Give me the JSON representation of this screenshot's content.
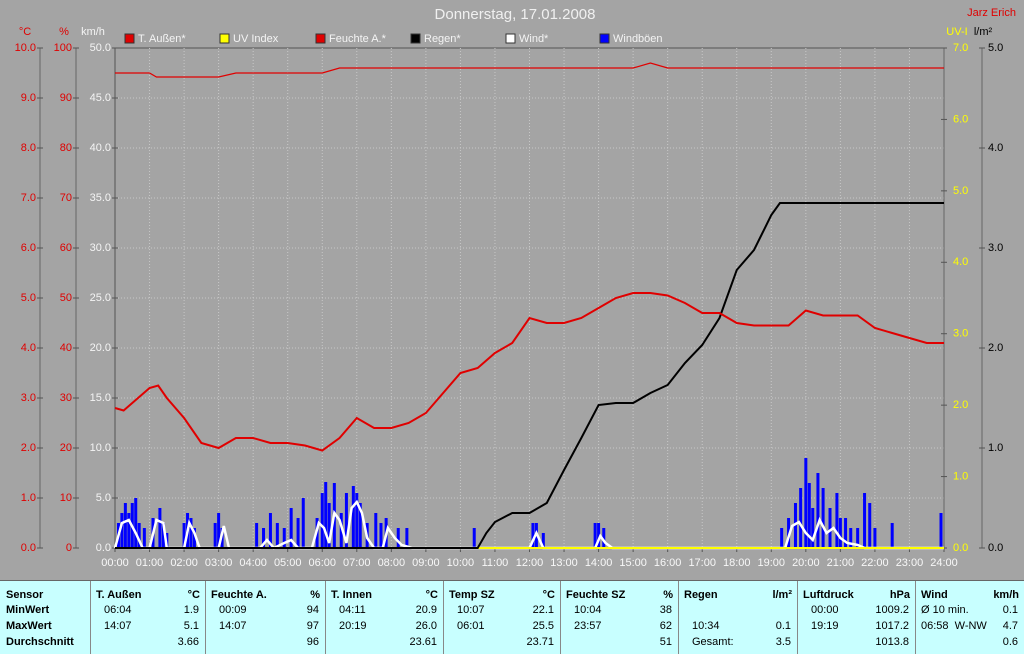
{
  "chart_data": {
    "type": "line",
    "title": "Donnerstag, 17.01.2008",
    "author": "Jarz Erich",
    "xlim": [
      0,
      24
    ],
    "xticks": [
      {
        "value": 0,
        "label": "00:00"
      },
      {
        "value": 1,
        "label": "01:00"
      },
      {
        "value": 2,
        "label": "02:00"
      },
      {
        "value": 3,
        "label": "03:00"
      },
      {
        "value": 4,
        "label": "04:00"
      },
      {
        "value": 5,
        "label": "05:00"
      },
      {
        "value": 6,
        "label": "06:00"
      },
      {
        "value": 7,
        "label": "07:00"
      },
      {
        "value": 8,
        "label": "08:00"
      },
      {
        "value": 9,
        "label": "09:00"
      },
      {
        "value": 10,
        "label": "10:00"
      },
      {
        "value": 11,
        "label": "11:00"
      },
      {
        "value": 12,
        "label": "12:00"
      },
      {
        "value": 13,
        "label": "13:00"
      },
      {
        "value": 14,
        "label": "14:00"
      },
      {
        "value": 15,
        "label": "15:00"
      },
      {
        "value": 16,
        "label": "16:00"
      },
      {
        "value": 17,
        "label": "17:00"
      },
      {
        "value": 18,
        "label": "18:00"
      },
      {
        "value": 19,
        "label": "19:00"
      },
      {
        "value": 20,
        "label": "20:00"
      },
      {
        "value": 21,
        "label": "21:00"
      },
      {
        "value": 22,
        "label": "22:00"
      },
      {
        "value": 23,
        "label": "23:00"
      },
      {
        "value": 24,
        "label": "24:00"
      }
    ],
    "grid": true,
    "y_axes": [
      {
        "label": "°C",
        "color": "#e00000",
        "ylim": [
          0,
          10
        ],
        "yticks": [
          {
            "value": 0,
            "label": "0.0"
          },
          {
            "value": 1,
            "label": "1.0"
          },
          {
            "value": 2,
            "label": "2.0"
          },
          {
            "value": 3,
            "label": "3.0"
          },
          {
            "value": 4,
            "label": "4.0"
          },
          {
            "value": 5,
            "label": "5.0"
          },
          {
            "value": 6,
            "label": "6.0"
          },
          {
            "value": 7,
            "label": "7.0"
          },
          {
            "value": 8,
            "label": "8.0"
          },
          {
            "value": 9,
            "label": "9.0"
          },
          {
            "value": 10,
            "label": "10.0"
          }
        ]
      },
      {
        "label": "%",
        "color": "#e00000",
        "ylim": [
          0,
          100
        ],
        "yticks": [
          0,
          10,
          20,
          30,
          40,
          50,
          60,
          70,
          80,
          90,
          100
        ]
      },
      {
        "label": "km/h",
        "color": "#f4f4f4",
        "ylim": [
          0,
          50
        ],
        "yticks": [
          {
            "value": 0,
            "label": "0.0"
          },
          {
            "value": 5,
            "label": "5.0"
          },
          {
            "value": 10,
            "label": "10.0"
          },
          {
            "value": 15,
            "label": "15.0"
          },
          {
            "value": 20,
            "label": "20.0"
          },
          {
            "value": 25,
            "label": "25.0"
          },
          {
            "value": 30,
            "label": "30.0"
          },
          {
            "value": 35,
            "label": "35.0"
          },
          {
            "value": 40,
            "label": "40.0"
          },
          {
            "value": 45,
            "label": "45.0"
          },
          {
            "value": 50,
            "label": "50.0"
          }
        ]
      },
      {
        "label": "UV-I",
        "color": "#ffff00",
        "ylim": [
          0,
          7
        ],
        "yticks": [
          {
            "value": 0,
            "label": "0.0"
          },
          {
            "value": 1,
            "label": "1.0"
          },
          {
            "value": 2,
            "label": "2.0"
          },
          {
            "value": 3,
            "label": "3.0"
          },
          {
            "value": 4,
            "label": "4.0"
          },
          {
            "value": 5,
            "label": "5.0"
          },
          {
            "value": 6,
            "label": "6.0"
          },
          {
            "value": 7,
            "label": "7.0"
          }
        ]
      },
      {
        "label": "l/m²",
        "color": "#000000",
        "ylim": [
          0,
          5
        ],
        "yticks": [
          {
            "value": 0,
            "label": "0.0"
          },
          {
            "value": 1,
            "label": "1.0"
          },
          {
            "value": 2,
            "label": "2.0"
          },
          {
            "value": 3,
            "label": "3.0"
          },
          {
            "value": 4,
            "label": "4.0"
          },
          {
            "value": 5,
            "label": "5.0"
          }
        ]
      }
    ],
    "series": [
      {
        "name": "T. Außen*",
        "color": "#e00000",
        "axis": 0,
        "kind": "line",
        "x": [
          0,
          0.25,
          0.5,
          1,
          1.25,
          1.5,
          2,
          2.5,
          3,
          3.5,
          4,
          4.5,
          5,
          5.5,
          6,
          6.5,
          7,
          7.5,
          8,
          8.5,
          9,
          9.5,
          10,
          10.5,
          11,
          11.5,
          12,
          12.5,
          13,
          13.5,
          14,
          14.5,
          15,
          15.5,
          16,
          16.5,
          17,
          17.5,
          18,
          18.5,
          19,
          19.5,
          20,
          20.5,
          21,
          21.5,
          22,
          22.5,
          23,
          23.5,
          24
        ],
        "values": [
          2.8,
          2.75,
          2.9,
          3.2,
          3.25,
          3.0,
          2.6,
          2.1,
          2.0,
          2.2,
          2.2,
          2.1,
          2.1,
          2.05,
          1.95,
          2.2,
          2.6,
          2.4,
          2.4,
          2.5,
          2.7,
          3.1,
          3.5,
          3.6,
          3.9,
          4.1,
          4.6,
          4.5,
          4.5,
          4.6,
          4.8,
          5.0,
          5.1,
          5.1,
          5.05,
          4.9,
          4.7,
          4.7,
          4.5,
          4.45,
          4.45,
          4.45,
          4.75,
          4.65,
          4.65,
          4.65,
          4.4,
          4.3,
          4.2,
          4.1,
          4.1
        ]
      },
      {
        "name": "UV Index",
        "color": "#ffff00",
        "axis": 3,
        "kind": "line",
        "x": [
          0,
          24
        ],
        "values": [
          0,
          0
        ]
      },
      {
        "name": "Feuchte A.*",
        "color": "#e00000",
        "axis": 1,
        "kind": "line",
        "x": [
          0,
          1,
          1.2,
          3,
          3.5,
          6,
          6.5,
          15,
          15.5,
          16,
          24
        ],
        "values": [
          95,
          95,
          94.2,
          94.2,
          95,
          95,
          96,
          96,
          97,
          96,
          96
        ]
      },
      {
        "name": "Regen*",
        "color": "#000000",
        "axis": 4,
        "kind": "line",
        "x": [
          0,
          10.5,
          10.75,
          11,
          11.5,
          12,
          12.5,
          13,
          13.5,
          14,
          14.5,
          15,
          15.5,
          16,
          16.5,
          17,
          17.5,
          18,
          18.5,
          19,
          19.25,
          24
        ],
        "values": [
          0,
          0,
          0.15,
          0.26,
          0.35,
          0.35,
          0.45,
          0.78,
          1.1,
          1.43,
          1.45,
          1.45,
          1.55,
          1.63,
          1.85,
          2.03,
          2.3,
          2.78,
          2.98,
          3.33,
          3.45,
          3.45
        ]
      },
      {
        "name": "Wind*",
        "color": "#ffffff",
        "axis": 2,
        "kind": "line",
        "x": [
          0,
          0.2,
          0.4,
          0.6,
          0.8,
          1.0,
          1.2,
          1.4,
          1.5,
          2.0,
          2.15,
          2.3,
          2.45,
          3.0,
          3.15,
          3.3,
          4.2,
          4.4,
          4.6,
          4.9,
          5.1,
          5.3,
          5.7,
          5.9,
          6.05,
          6.2,
          6.35,
          6.5,
          6.7,
          6.85,
          7.0,
          7.15,
          7.3,
          7.5,
          7.75,
          7.9,
          8.1,
          8.3,
          8.6,
          12.0,
          12.2,
          12.4,
          13.9,
          14.05,
          14.2,
          14.4,
          19.4,
          19.6,
          19.8,
          20.0,
          20.2,
          20.4,
          20.6,
          20.8,
          21.0,
          21.2,
          21.5,
          21.7,
          24
        ],
        "values": [
          0,
          2.5,
          2.8,
          1.5,
          0,
          0,
          2.8,
          2.5,
          0,
          0,
          2.5,
          1.5,
          0,
          0,
          2.2,
          0,
          0,
          0.8,
          0,
          0.5,
          0.8,
          0,
          0,
          2.5,
          2.0,
          0.5,
          3.5,
          2.8,
          0.5,
          4.0,
          4.6,
          3.5,
          1.0,
          0,
          0,
          2.0,
          1.0,
          0.3,
          0,
          0,
          1.5,
          0,
          0,
          1.2,
          0.5,
          0,
          0,
          2.2,
          2.6,
          1.5,
          0.8,
          2.8,
          1.5,
          2.0,
          1.0,
          0.5,
          0.3,
          0,
          0
        ]
      },
      {
        "name": "Windböen",
        "color": "#0000ff",
        "axis": 2,
        "kind": "bar",
        "x": [
          0.1,
          0.2,
          0.3,
          0.4,
          0.5,
          0.6,
          0.7,
          0.85,
          1.1,
          1.3,
          1.4,
          1.5,
          2.0,
          2.1,
          2.2,
          2.3,
          2.9,
          3.0,
          3.1,
          4.1,
          4.3,
          4.5,
          4.7,
          4.9,
          5.1,
          5.3,
          5.45,
          5.85,
          6.0,
          6.1,
          6.2,
          6.35,
          6.55,
          6.7,
          6.9,
          7.0,
          7.1,
          7.3,
          7.55,
          7.7,
          7.85,
          8.2,
          8.45,
          10.4,
          12.1,
          12.2,
          12.4,
          13.9,
          14.0,
          14.15,
          19.3,
          19.5,
          19.7,
          19.85,
          20.0,
          20.1,
          20.2,
          20.35,
          20.5,
          20.7,
          20.9,
          21.0,
          21.15,
          21.3,
          21.5,
          21.7,
          21.85,
          22.0,
          22.5,
          24
        ],
        "values": [
          2.5,
          3.5,
          4.5,
          3.5,
          4.5,
          5,
          2.5,
          2,
          3,
          4,
          2.5,
          1.5,
          2.5,
          3.5,
          3,
          2,
          2.5,
          3.5,
          2,
          2.5,
          2,
          3.5,
          2.5,
          2,
          4,
          3,
          5,
          3,
          5.5,
          6.6,
          4.5,
          6.5,
          3.5,
          5.5,
          6.2,
          5.5,
          4.5,
          2.5,
          3.5,
          2.5,
          3,
          2,
          2,
          2,
          2.5,
          2.5,
          1.5,
          2.5,
          2.5,
          2,
          2,
          3,
          4.5,
          6,
          9,
          6.5,
          4,
          7.5,
          6,
          4,
          5.5,
          3,
          3,
          2,
          2,
          5.5,
          4.5,
          2,
          2.5,
          3.5
        ]
      }
    ]
  },
  "table": {
    "sensor_header": "Sensor",
    "row_labels": [
      "MinWert",
      "MaxWert",
      "Durchschnitt"
    ],
    "columns": [
      {
        "header": "T. Außen",
        "unit": "°C",
        "rows": [
          [
            "06:04",
            "1.9"
          ],
          [
            "14:07",
            "5.1"
          ],
          [
            null,
            "3.66"
          ]
        ]
      },
      {
        "header": "Feuchte A.",
        "unit": "%",
        "rows": [
          [
            "00:09",
            "94"
          ],
          [
            "14:07",
            "97"
          ],
          [
            null,
            "96"
          ]
        ]
      },
      {
        "header": "T. Innen",
        "unit": "°C",
        "rows": [
          [
            "04:11",
            "20.9"
          ],
          [
            "20:19",
            "26.0"
          ],
          [
            null,
            "23.61"
          ]
        ]
      },
      {
        "header": "Temp SZ",
        "unit": "°C",
        "rows": [
          [
            "10:07",
            "22.1"
          ],
          [
            "06:01",
            "25.5"
          ],
          [
            null,
            "23.71"
          ]
        ]
      },
      {
        "header": "Feuchte SZ",
        "unit": "%",
        "rows": [
          [
            "10:04",
            "38"
          ],
          [
            "23:57",
            "62"
          ],
          [
            null,
            "51"
          ]
        ]
      },
      {
        "header": "Regen",
        "unit": "l/m²",
        "rows": [
          [
            null,
            null
          ],
          [
            "10:34",
            "0.1"
          ],
          [
            "Gesamt:",
            "3.5"
          ]
        ]
      },
      {
        "header": "Luftdruck",
        "unit": "hPa",
        "rows": [
          [
            "00:00",
            "1009.2"
          ],
          [
            "19:19",
            "1017.2"
          ],
          [
            null,
            "1013.8"
          ]
        ]
      },
      {
        "header": "Wind",
        "unit": "km/h",
        "rows": [
          [
            "Ø 10 min.",
            "0.1"
          ],
          [
            "06:58  W-NW",
            "4.7"
          ],
          [
            null,
            "0.6"
          ]
        ]
      }
    ]
  }
}
